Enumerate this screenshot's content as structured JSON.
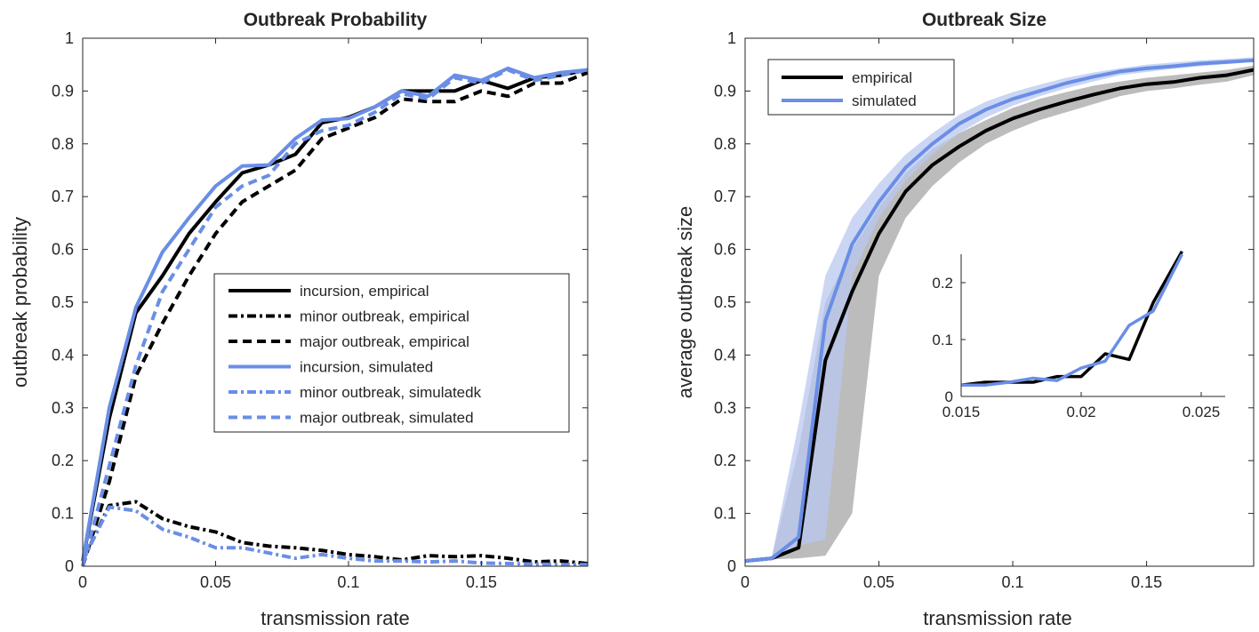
{
  "chart_data": [
    {
      "type": "line",
      "title": "Outbreak Probability",
      "xlabel": "transmission rate",
      "ylabel": "outbreak probability",
      "xlim": [
        0,
        0.19
      ],
      "ylim": [
        0,
        1
      ],
      "xticks": [
        0,
        0.05,
        0.1,
        0.15
      ],
      "xtick_labels": [
        "0",
        "0.05",
        "0.1",
        "0.15"
      ],
      "yticks": [
        0,
        0.1,
        0.2,
        0.3,
        0.4,
        0.5,
        0.6,
        0.7,
        0.8,
        0.9,
        1
      ],
      "ytick_labels": [
        "0",
        "0.1",
        "0.2",
        "0.3",
        "0.4",
        "0.5",
        "0.6",
        "0.7",
        "0.8",
        "0.9",
        "1"
      ],
      "grid": false,
      "legend_position": "center-right",
      "colors": {
        "empirical": "#000000",
        "simulated": "#6a8ee6"
      },
      "x": [
        0,
        0.01,
        0.02,
        0.03,
        0.04,
        0.05,
        0.06,
        0.07,
        0.08,
        0.09,
        0.1,
        0.11,
        0.12,
        0.13,
        0.14,
        0.15,
        0.16,
        0.17,
        0.18,
        0.19
      ],
      "series": [
        {
          "name": "incursion, empirical",
          "color": "#000000",
          "dash": "solid",
          "values": [
            0.01,
            0.28,
            0.48,
            0.55,
            0.63,
            0.69,
            0.745,
            0.76,
            0.78,
            0.84,
            0.85,
            0.87,
            0.9,
            0.9,
            0.9,
            0.92,
            0.905,
            0.925,
            0.93,
            0.94
          ]
        },
        {
          "name": "minor outbreak, empirical",
          "color": "#000000",
          "dash": "dashdot",
          "values": [
            0.01,
            0.115,
            0.122,
            0.09,
            0.075,
            0.065,
            0.045,
            0.038,
            0.035,
            0.03,
            0.022,
            0.018,
            0.012,
            0.02,
            0.018,
            0.02,
            0.015,
            0.008,
            0.01,
            0.005
          ]
        },
        {
          "name": "major outbreak, empirical",
          "color": "#000000",
          "dash": "dashed",
          "values": [
            0.0,
            0.16,
            0.36,
            0.46,
            0.55,
            0.63,
            0.69,
            0.72,
            0.75,
            0.81,
            0.83,
            0.85,
            0.885,
            0.88,
            0.88,
            0.9,
            0.89,
            0.915,
            0.915,
            0.935
          ]
        },
        {
          "name": "incursion, simulated",
          "color": "#6a8ee6",
          "dash": "solid",
          "values": [
            0.01,
            0.3,
            0.49,
            0.595,
            0.66,
            0.72,
            0.758,
            0.76,
            0.81,
            0.845,
            0.848,
            0.87,
            0.9,
            0.89,
            0.93,
            0.92,
            0.943,
            0.925,
            0.935,
            0.94
          ]
        },
        {
          "name": "minor outbreak, simulatedk",
          "color": "#6a8ee6",
          "dash": "dashdot",
          "values": [
            0.01,
            0.112,
            0.105,
            0.07,
            0.055,
            0.035,
            0.035,
            0.025,
            0.015,
            0.022,
            0.015,
            0.01,
            0.01,
            0.008,
            0.01,
            0.006,
            0.005,
            0.004,
            0.003,
            0.003
          ]
        },
        {
          "name": "major outbreak, simulated",
          "color": "#6a8ee6",
          "dash": "dashed",
          "values": [
            0.0,
            0.19,
            0.38,
            0.52,
            0.6,
            0.68,
            0.72,
            0.74,
            0.8,
            0.825,
            0.835,
            0.86,
            0.895,
            0.885,
            0.925,
            0.915,
            0.94,
            0.92,
            0.93,
            0.94
          ]
        }
      ]
    },
    {
      "type": "line",
      "title": "Outbreak Size",
      "xlabel": "transmission rate",
      "ylabel": "average outbreak size",
      "xlim": [
        0,
        0.19
      ],
      "ylim": [
        0,
        1
      ],
      "xticks": [
        0,
        0.05,
        0.1,
        0.15
      ],
      "xtick_labels": [
        "0",
        "0.05",
        "0.1",
        "0.15"
      ],
      "yticks": [
        0,
        0.1,
        0.2,
        0.3,
        0.4,
        0.5,
        0.6,
        0.7,
        0.8,
        0.9,
        1
      ],
      "ytick_labels": [
        "0",
        "0.1",
        "0.2",
        "0.3",
        "0.4",
        "0.5",
        "0.6",
        "0.7",
        "0.8",
        "0.9",
        "1"
      ],
      "grid": false,
      "legend_position": "top-left",
      "x": [
        0,
        0.01,
        0.02,
        0.03,
        0.04,
        0.05,
        0.06,
        0.07,
        0.08,
        0.09,
        0.1,
        0.11,
        0.12,
        0.13,
        0.14,
        0.15,
        0.16,
        0.17,
        0.18,
        0.19
      ],
      "series": [
        {
          "name": "empirical",
          "color": "#000000",
          "values": [
            0.01,
            0.015,
            0.035,
            0.39,
            0.52,
            0.63,
            0.71,
            0.76,
            0.795,
            0.825,
            0.848,
            0.865,
            0.88,
            0.893,
            0.905,
            0.913,
            0.917,
            0.925,
            0.93,
            0.94
          ],
          "band_color": "#a6a6a6",
          "band_lower": [
            0.01,
            0.013,
            0.015,
            0.02,
            0.1,
            0.55,
            0.66,
            0.72,
            0.765,
            0.8,
            0.825,
            0.845,
            0.86,
            0.875,
            0.89,
            0.9,
            0.905,
            0.912,
            0.918,
            0.93
          ],
          "band_upper": [
            0.01,
            0.018,
            0.22,
            0.5,
            0.6,
            0.68,
            0.745,
            0.79,
            0.82,
            0.845,
            0.868,
            0.885,
            0.898,
            0.91,
            0.918,
            0.925,
            0.93,
            0.935,
            0.94,
            0.948
          ]
        },
        {
          "name": "simulated",
          "color": "#6a8ee6",
          "values": [
            0.01,
            0.015,
            0.055,
            0.465,
            0.61,
            0.69,
            0.755,
            0.8,
            0.838,
            0.865,
            0.885,
            0.9,
            0.915,
            0.927,
            0.937,
            0.943,
            0.947,
            0.952,
            0.955,
            0.958
          ],
          "band_color": "#b9c8f0",
          "band_lower": [
            0.01,
            0.013,
            0.04,
            0.05,
            0.55,
            0.66,
            0.73,
            0.78,
            0.82,
            0.85,
            0.872,
            0.89,
            0.905,
            0.918,
            0.93,
            0.936,
            0.942,
            0.947,
            0.951,
            0.955
          ],
          "band_upper": [
            0.01,
            0.018,
            0.27,
            0.55,
            0.66,
            0.725,
            0.78,
            0.82,
            0.855,
            0.88,
            0.898,
            0.912,
            0.925,
            0.935,
            0.943,
            0.95,
            0.954,
            0.958,
            0.961,
            0.964
          ]
        }
      ],
      "inset": {
        "xlim": [
          0.015,
          0.026
        ],
        "ylim": [
          0,
          0.25
        ],
        "xticks": [
          0.015,
          0.02,
          0.025
        ],
        "xtick_labels": [
          "0.015",
          "0.02",
          "0.025"
        ],
        "yticks": [
          0,
          0.1,
          0.2
        ],
        "ytick_labels": [
          "0",
          "0.1",
          "0.2"
        ],
        "series": [
          {
            "name": "empirical",
            "color": "#000000",
            "x": [
              0.015,
              0.016,
              0.017,
              0.018,
              0.019,
              0.02,
              0.021,
              0.022,
              0.023,
              0.0242
            ],
            "values": [
              0.02,
              0.025,
              0.025,
              0.025,
              0.035,
              0.035,
              0.075,
              0.065,
              0.165,
              0.255
            ]
          },
          {
            "name": "simulated",
            "color": "#6a8ee6",
            "x": [
              0.015,
              0.016,
              0.017,
              0.018,
              0.019,
              0.02,
              0.021,
              0.022,
              0.023,
              0.0242
            ],
            "values": [
              0.02,
              0.02,
              0.025,
              0.032,
              0.028,
              0.05,
              0.062,
              0.125,
              0.15,
              0.25
            ]
          }
        ]
      }
    }
  ]
}
